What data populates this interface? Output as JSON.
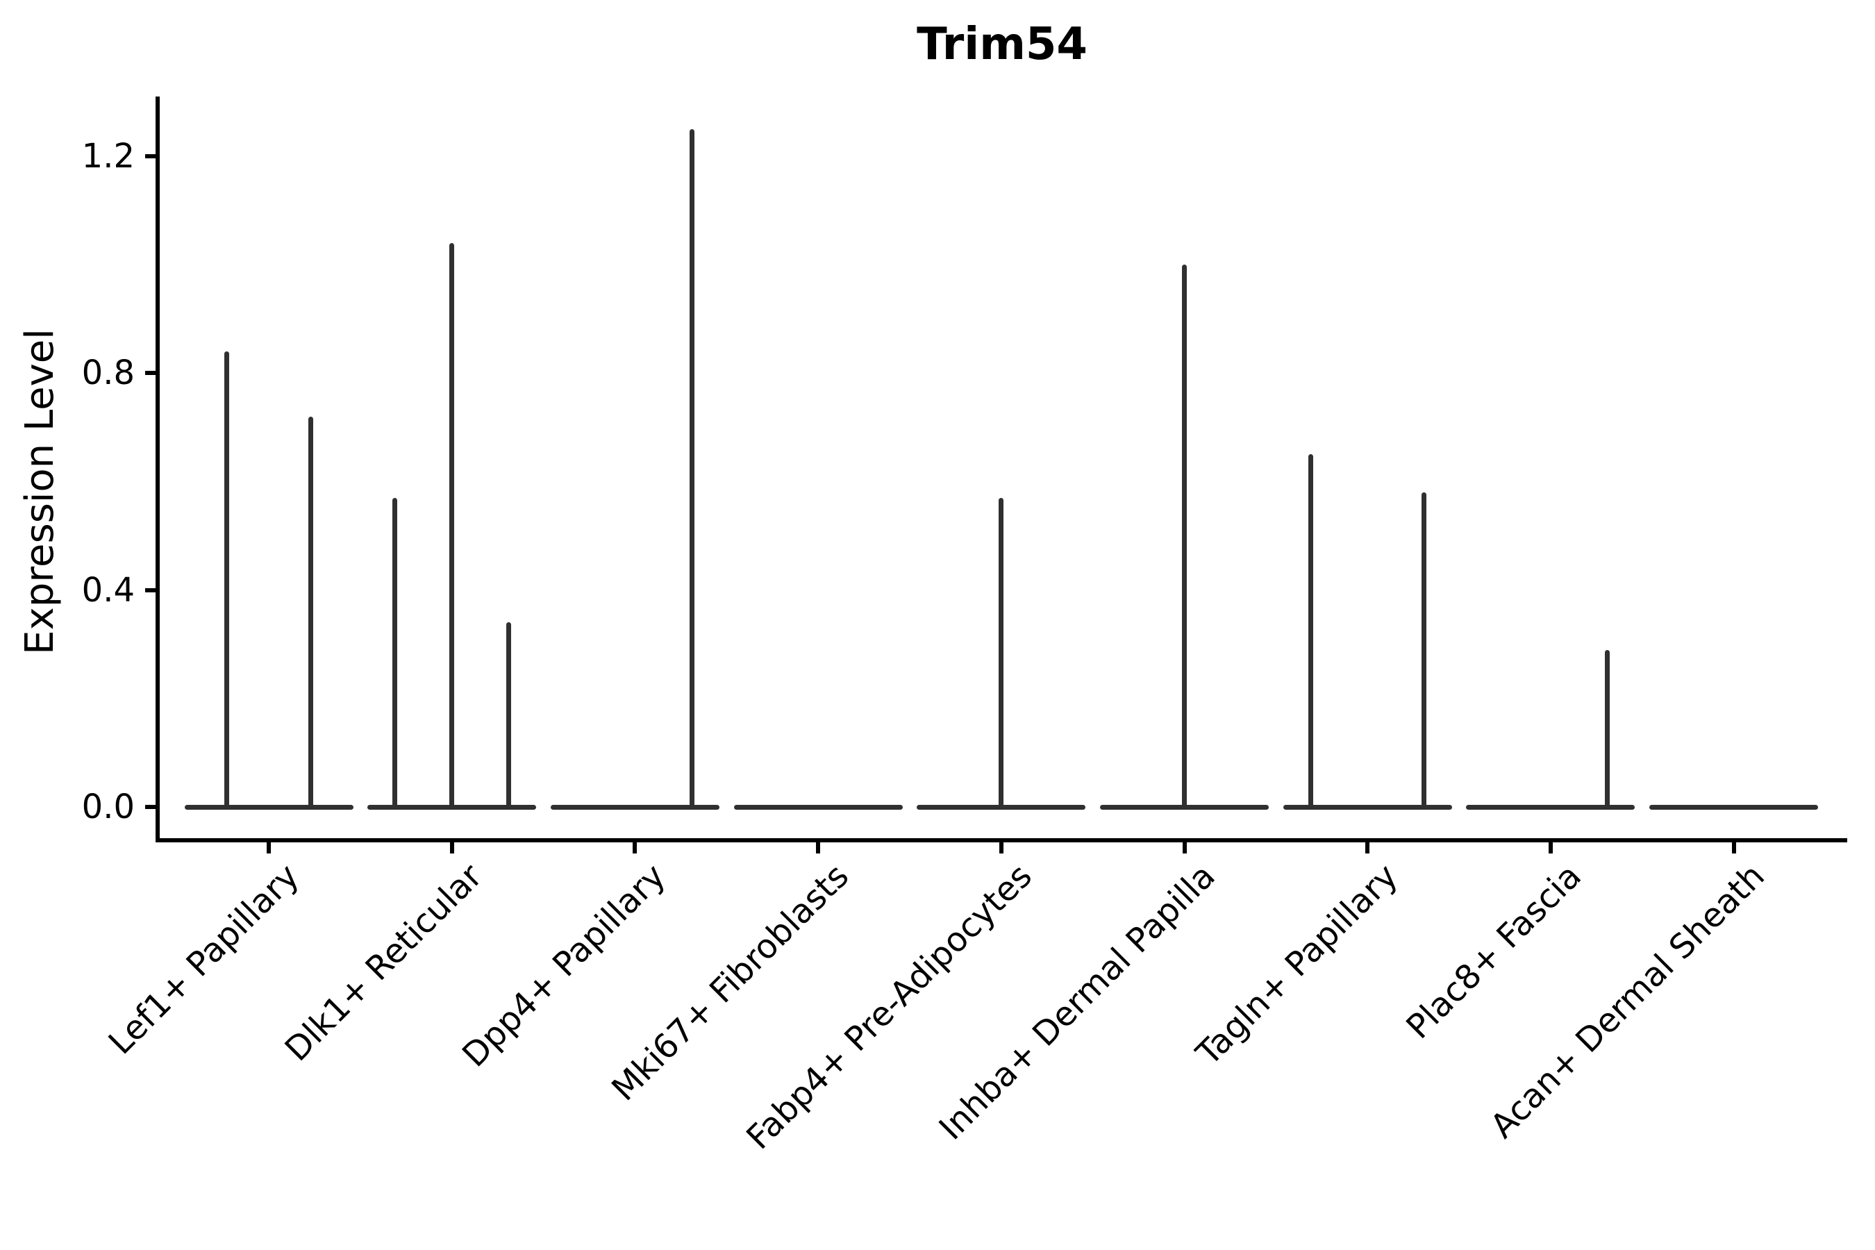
{
  "chart_data": {
    "type": "violin",
    "title": "Trim54",
    "xlabel": "",
    "ylabel": "Expression Level",
    "ylim": [
      -0.06,
      1.31
    ],
    "yticks": [
      {
        "label": "0.0",
        "value": 0.0
      },
      {
        "label": "0.4",
        "value": 0.4
      },
      {
        "label": "0.8",
        "value": 0.8
      },
      {
        "label": "1.2",
        "value": 1.2
      }
    ],
    "grid": false,
    "legend": false,
    "categories": [
      "Lef1+ Papillary",
      "Dlk1+ Reticular",
      "Dpp4+ Papillary",
      "Mki67+ Fibroblasts",
      "Fabp4+ Pre-Adipocytes",
      "Inhba+ Dermal Papilla",
      "Tagln+ Papillary",
      "Plac8+ Fascia",
      "Acan+ Dermal Sheath"
    ],
    "violins": [
      {
        "category": "Lef1+ Papillary",
        "base_value": 0.0,
        "spikes": [
          {
            "offset": -0.23,
            "max": 0.84
          },
          {
            "offset": 0.23,
            "max": 0.72
          }
        ]
      },
      {
        "category": "Dlk1+ Reticular",
        "base_value": 0.0,
        "spikes": [
          {
            "offset": -0.31,
            "max": 0.57
          },
          {
            "offset": 0.0,
            "max": 1.04
          },
          {
            "offset": 0.31,
            "max": 0.34
          }
        ]
      },
      {
        "category": "Dpp4+ Papillary",
        "base_value": 0.0,
        "spikes": [
          {
            "offset": 0.31,
            "max": 1.25
          }
        ]
      },
      {
        "category": "Mki67+ Fibroblasts",
        "base_value": 0.0,
        "spikes": []
      },
      {
        "category": "Fabp4+ Pre-Adipocytes",
        "base_value": 0.0,
        "spikes": [
          {
            "offset": 0.0,
            "max": 0.57
          }
        ]
      },
      {
        "category": "Inhba+ Dermal Papilla",
        "base_value": 0.0,
        "spikes": [
          {
            "offset": 0.0,
            "max": 1.0
          }
        ]
      },
      {
        "category": "Tagln+ Papillary",
        "base_value": 0.0,
        "spikes": [
          {
            "offset": -0.31,
            "max": 0.65
          },
          {
            "offset": 0.31,
            "max": 0.58
          }
        ]
      },
      {
        "category": "Plac8+ Fascia",
        "base_value": 0.0,
        "spikes": [
          {
            "offset": 0.31,
            "max": 0.29
          }
        ]
      },
      {
        "category": "Acan+ Dermal Sheath",
        "base_value": 0.0,
        "spikes": []
      }
    ],
    "colors": {
      "violin": "#303030",
      "axis": "#000000",
      "text": "#000000",
      "background": "#ffffff"
    }
  }
}
